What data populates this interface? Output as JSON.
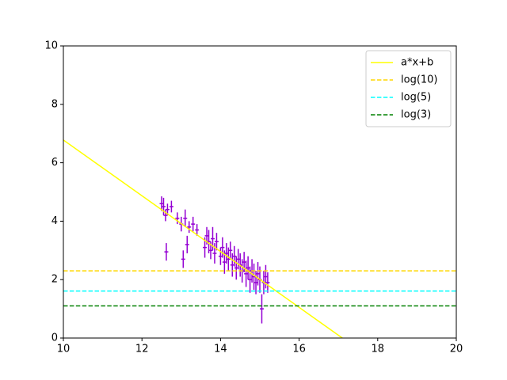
{
  "chart_data": {
    "type": "errorbar",
    "xlim": [
      10,
      20
    ],
    "xticks": [
      10,
      12,
      14,
      16,
      18,
      20
    ],
    "ylim": [
      0,
      10
    ],
    "yticks": [
      0,
      2,
      4,
      6,
      8,
      10
    ],
    "legend": "upper right",
    "series": [
      {
        "type": "errorbar",
        "color": "#9400d3",
        "xerr": 0.05,
        "x": [
          12.5,
          12.55,
          12.6,
          12.62,
          12.65,
          12.75,
          12.9,
          13.0,
          13.05,
          13.1,
          13.15,
          13.2,
          13.3,
          13.4,
          13.6,
          13.65,
          13.7,
          13.75,
          13.8,
          13.85,
          13.9,
          14.0,
          14.05,
          14.1,
          14.15,
          14.2,
          14.25,
          14.3,
          14.35,
          14.4,
          14.45,
          14.5,
          14.55,
          14.6,
          14.65,
          14.7,
          14.75,
          14.8,
          14.85,
          14.9,
          14.95,
          15.0,
          15.05,
          15.1,
          15.15,
          15.2
        ],
        "values": [
          4.6,
          4.5,
          4.2,
          2.95,
          4.4,
          4.5,
          4.1,
          3.9,
          2.7,
          4.1,
          3.2,
          3.8,
          3.9,
          3.7,
          3.1,
          3.5,
          3.3,
          3.0,
          3.4,
          2.9,
          3.3,
          2.8,
          3.1,
          2.6,
          2.9,
          2.7,
          3.0,
          2.5,
          2.8,
          2.4,
          2.7,
          2.5,
          2.3,
          2.6,
          2.2,
          2.4,
          2.0,
          2.3,
          2.1,
          1.9,
          2.2,
          2.0,
          1.0,
          1.9,
          2.1,
          1.9
        ],
        "errors": [
          0.25,
          0.3,
          0.2,
          0.3,
          0.2,
          0.2,
          0.2,
          0.25,
          0.3,
          0.3,
          0.3,
          0.2,
          0.25,
          0.2,
          0.35,
          0.3,
          0.4,
          0.3,
          0.4,
          0.35,
          0.3,
          0.3,
          0.35,
          0.4,
          0.35,
          0.4,
          0.3,
          0.4,
          0.35,
          0.4,
          0.35,
          0.4,
          0.4,
          0.35,
          0.45,
          0.4,
          0.45,
          0.4,
          0.45,
          0.4,
          0.4,
          0.45,
          0.5,
          0.4,
          0.4,
          0.35
        ]
      },
      {
        "type": "line",
        "name": "a*x+b",
        "color": "#ffff00",
        "dash": false,
        "x": [
          10,
          17.1
        ],
        "values": [
          6.78,
          0
        ]
      },
      {
        "type": "line",
        "name": "log(10)",
        "color": "#ffd700",
        "dash": true,
        "x": [
          10,
          20
        ],
        "values": [
          2.3,
          2.3
        ]
      },
      {
        "type": "line",
        "name": "log(5)",
        "color": "#00ffff",
        "dash": true,
        "x": [
          10,
          20
        ],
        "values": [
          1.61,
          1.61
        ]
      },
      {
        "type": "line",
        "name": "log(3)",
        "color": "#008000",
        "dash": true,
        "x": [
          10,
          20
        ],
        "values": [
          1.1,
          1.1
        ]
      }
    ]
  }
}
